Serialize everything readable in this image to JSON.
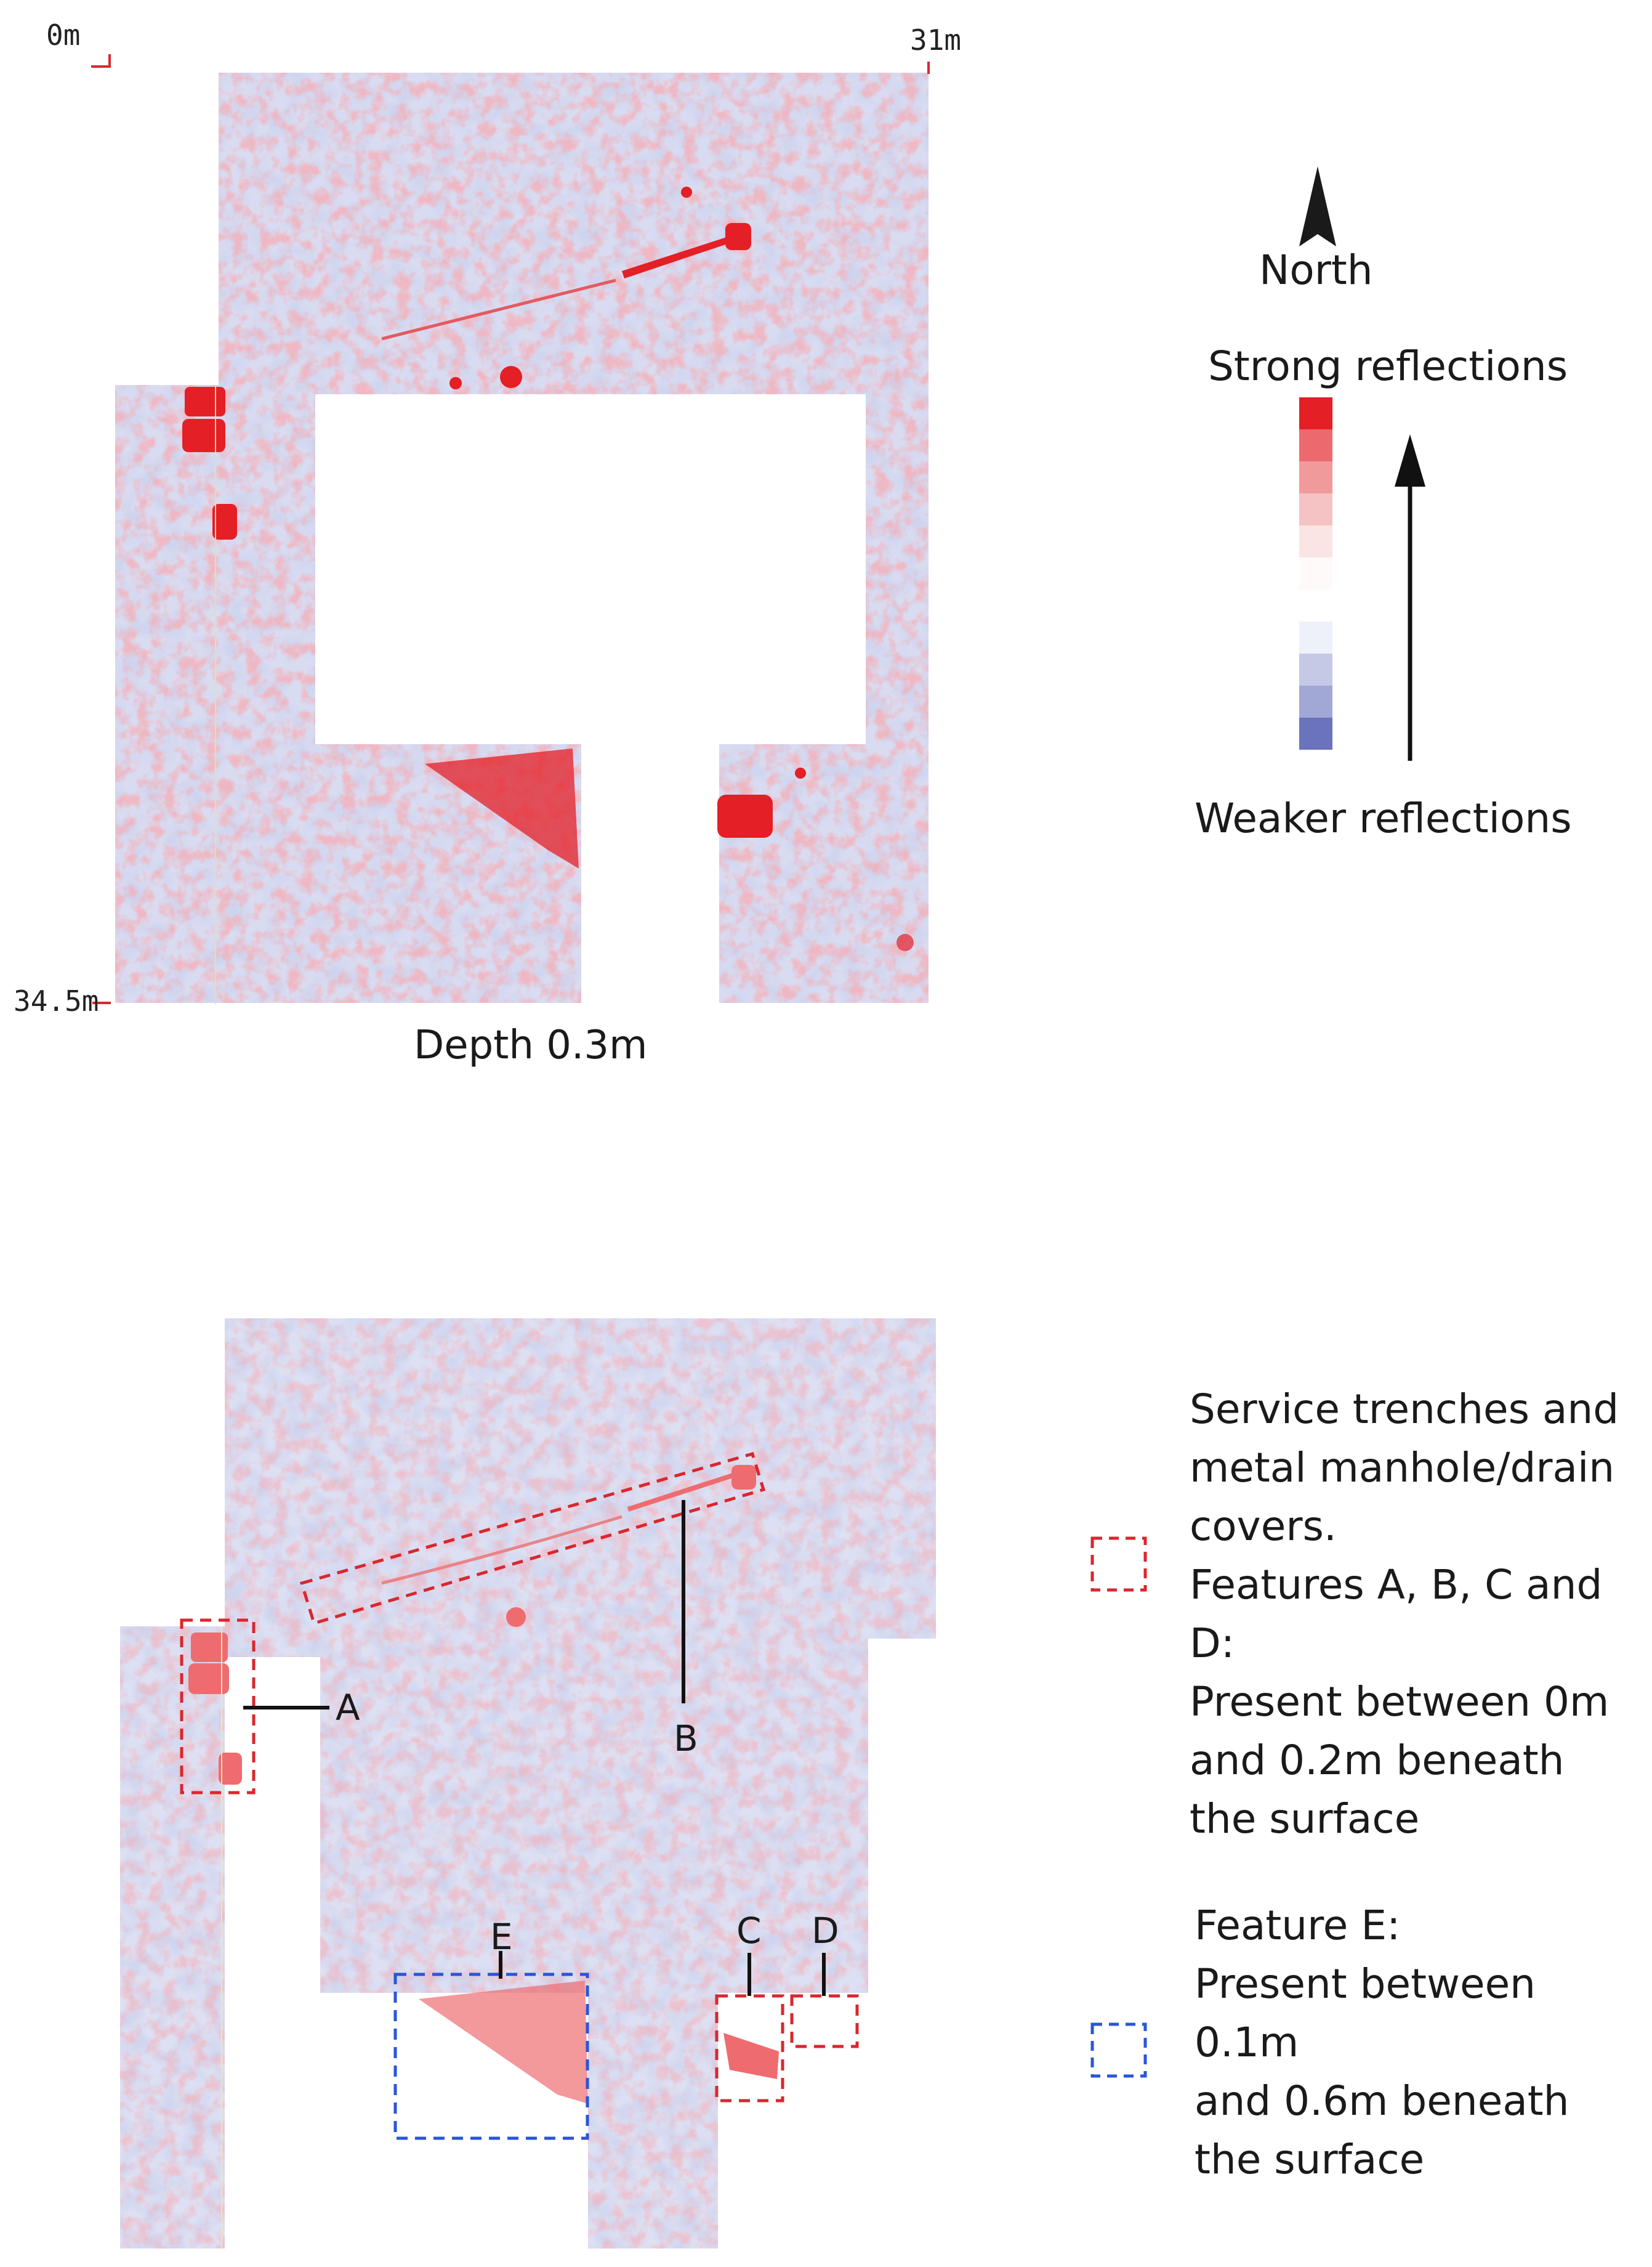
{
  "top_panel": {
    "scale_start": "0m",
    "scale_end": "31m",
    "scale_left": "34.5m",
    "caption": "Depth 0.3m"
  },
  "compass": {
    "label": "North"
  },
  "color_scale": {
    "top_label": "Strong reflections",
    "bottom_label": "Weaker reflections",
    "colors": [
      "#e41f26",
      "#ec6a6e",
      "#f19a9c",
      "#f6c3c4",
      "#fbe4e4",
      "#fefafa",
      "#ffffff",
      "#eef0fa",
      "#c5c9e6",
      "#a2a8d6",
      "#6a73bb"
    ]
  },
  "legend": {
    "red": {
      "lines": [
        "Service trenches and",
        "metal manhole/drain",
        "covers.",
        "Features A, B, C and D:",
        "Present between 0m",
        "and 0.2m beneath",
        "the surface"
      ],
      "color": "#d9272e"
    },
    "blue": {
      "lines": [
        "Feature E:",
        "Present between 0.1m",
        "and 0.6m beneath",
        "the surface"
      ],
      "color": "#2a55d6"
    }
  },
  "features": {
    "A": "A",
    "B": "B",
    "C": "C",
    "D": "D",
    "E": "E"
  }
}
